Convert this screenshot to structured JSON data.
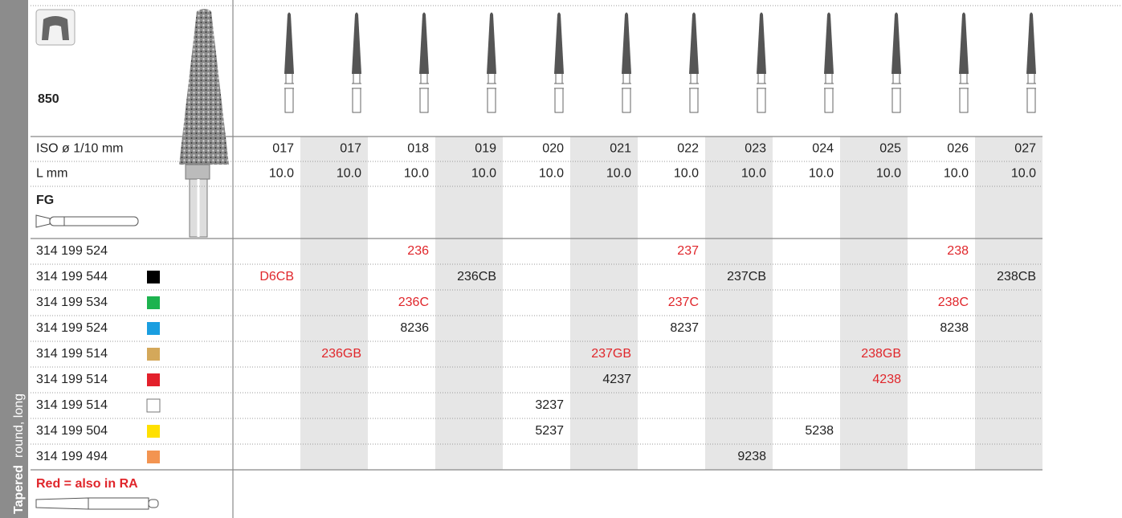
{
  "sidebar": {
    "shape": "Tapered",
    "variant": "round, long"
  },
  "header": {
    "figure": "850"
  },
  "specs": [
    {
      "label": "ISO ø 1/10 mm",
      "values": [
        "017",
        "017",
        "018",
        "019",
        "020",
        "021",
        "022",
        "023",
        "024",
        "025",
        "026",
        "027"
      ]
    },
    {
      "label": "L mm",
      "values": [
        "10.0",
        "10.0",
        "10.0",
        "10.0",
        "10.0",
        "10.0",
        "10.0",
        "10.0",
        "10.0",
        "10.0",
        "10.0",
        "10.0"
      ]
    }
  ],
  "shank": "FG",
  "rows": [
    {
      "code": "314 199 524",
      "cells": [
        null,
        null,
        {
          "text": "236",
          "red": true
        },
        null,
        null,
        null,
        {
          "text": "237",
          "red": true
        },
        null,
        null,
        null,
        {
          "text": "238",
          "red": true
        },
        null
      ]
    },
    {
      "code": "314 199 544",
      "swatch": "#000000",
      "cells": [
        {
          "text": "D6CB",
          "red": true
        },
        null,
        null,
        {
          "text": "236CB",
          "red": false
        },
        null,
        null,
        null,
        {
          "text": "237CB",
          "red": false
        },
        null,
        null,
        null,
        {
          "text": "238CB",
          "red": false
        }
      ]
    },
    {
      "code": "314 199 534",
      "swatch": "#1db34f",
      "cells": [
        null,
        null,
        {
          "text": "236C",
          "red": true
        },
        null,
        null,
        null,
        {
          "text": "237C",
          "red": true
        },
        null,
        null,
        null,
        {
          "text": "238C",
          "red": true
        },
        null
      ]
    },
    {
      "code": "314 199 524",
      "swatch": "#1a9ee0",
      "cells": [
        null,
        null,
        {
          "text": "8236",
          "red": false
        },
        null,
        null,
        null,
        {
          "text": "8237",
          "red": false
        },
        null,
        null,
        null,
        {
          "text": "8238",
          "red": false
        },
        null
      ]
    },
    {
      "code": "314 199 514",
      "swatch": "#d4a85a",
      "cells": [
        null,
        {
          "text": "236GB",
          "red": true
        },
        null,
        null,
        null,
        {
          "text": "237GB",
          "red": true
        },
        null,
        null,
        null,
        {
          "text": "238GB",
          "red": true
        },
        null,
        null
      ]
    },
    {
      "code": "314 199 514",
      "swatch": "#e3202b",
      "cells": [
        null,
        null,
        null,
        null,
        null,
        {
          "text": "4237",
          "red": false
        },
        null,
        null,
        null,
        {
          "text": "4238",
          "red": true
        },
        null,
        null
      ]
    },
    {
      "code": "314 199 514",
      "swatch": "#ffffff",
      "cells": [
        null,
        null,
        null,
        null,
        {
          "text": "3237",
          "red": false
        },
        null,
        null,
        null,
        null,
        null,
        null,
        null
      ]
    },
    {
      "code": "314 199 504",
      "swatch": "#ffe000",
      "cells": [
        null,
        null,
        null,
        null,
        {
          "text": "5237",
          "red": false
        },
        null,
        null,
        null,
        {
          "text": "5238",
          "red": false
        },
        null,
        null,
        null
      ]
    },
    {
      "code": "314 199 494",
      "swatch": "#f39451",
      "cells": [
        null,
        null,
        null,
        null,
        null,
        null,
        null,
        {
          "text": "9238",
          "red": false
        },
        null,
        null,
        null,
        null
      ]
    }
  ],
  "footnote": "Red = also in RA"
}
